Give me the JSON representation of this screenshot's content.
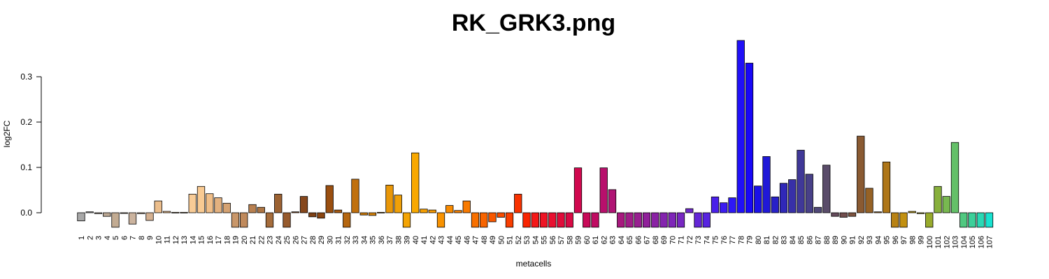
{
  "chart_data": {
    "type": "bar",
    "title": "RK_GRK3.png",
    "xlabel": "metacells",
    "ylabel": "log2FC",
    "ylim": [
      -0.035,
      0.38
    ],
    "yticks": [
      0.0,
      0.1,
      0.2,
      0.3
    ],
    "ytick_labels": [
      "0.0",
      "0.1",
      "0.2",
      "0.3"
    ],
    "grid": false,
    "categories": [
      "1",
      "2",
      "3",
      "4",
      "5",
      "6",
      "7",
      "8",
      "9",
      "10",
      "11",
      "12",
      "13",
      "14",
      "15",
      "16",
      "17",
      "18",
      "19",
      "20",
      "21",
      "22",
      "23",
      "24",
      "25",
      "26",
      "27",
      "28",
      "29",
      "30",
      "31",
      "32",
      "33",
      "34",
      "35",
      "36",
      "37",
      "38",
      "39",
      "40",
      "41",
      "42",
      "43",
      "44",
      "45",
      "46",
      "47",
      "48",
      "49",
      "50",
      "51",
      "52",
      "53",
      "54",
      "55",
      "56",
      "57",
      "58",
      "59",
      "60",
      "61",
      "62",
      "63",
      "64",
      "65",
      "66",
      "67",
      "68",
      "69",
      "70",
      "71",
      "72",
      "73",
      "74",
      "75",
      "76",
      "77",
      "78",
      "79",
      "80",
      "81",
      "82",
      "83",
      "84",
      "85",
      "86",
      "87",
      "88",
      "89",
      "90",
      "91",
      "92",
      "93",
      "94",
      "95",
      "96",
      "97",
      "98",
      "99",
      "100",
      "101",
      "102",
      "103",
      "104",
      "105",
      "106",
      "107"
    ],
    "values": [
      -0.018,
      0.002,
      -0.002,
      -0.008,
      -0.032,
      -0.001,
      -0.025,
      -0.002,
      -0.017,
      0.026,
      0.003,
      0.001,
      0.001,
      0.041,
      0.058,
      0.042,
      0.033,
      0.021,
      -0.032,
      -0.032,
      0.018,
      0.012,
      -0.032,
      0.041,
      -0.032,
      0.002,
      0.036,
      -0.009,
      -0.012,
      0.06,
      0.006,
      -0.032,
      0.074,
      -0.005,
      -0.006,
      0.001,
      0.061,
      0.039,
      -0.032,
      0.132,
      0.008,
      0.006,
      -0.032,
      0.016,
      0.005,
      0.026,
      -0.032,
      -0.032,
      -0.02,
      -0.01,
      -0.032,
      0.041,
      -0.032,
      -0.032,
      -0.032,
      -0.032,
      -0.032,
      -0.032,
      0.099,
      -0.032,
      -0.032,
      0.099,
      0.051,
      -0.032,
      -0.032,
      -0.032,
      -0.032,
      -0.032,
      -0.032,
      -0.032,
      -0.032,
      0.009,
      -0.032,
      -0.032,
      0.035,
      0.022,
      0.033,
      0.38,
      0.33,
      0.059,
      0.124,
      0.035,
      0.065,
      0.073,
      0.138,
      0.085,
      0.012,
      0.105,
      -0.008,
      -0.01,
      -0.008,
      0.169,
      0.054,
      0.002,
      0.112,
      -0.032,
      -0.032,
      0.003,
      -0.002,
      -0.032,
      0.058,
      0.036,
      0.155,
      -0.032,
      -0.032,
      -0.032,
      -0.032
    ],
    "colors": [
      "#a8a8a8",
      "#a8a8a8",
      "#b5a999",
      "#bba894",
      "#c2ab92",
      "#c6ac93",
      "#cbb39e",
      "#cfb399",
      "#d4b090",
      "#ecbe8c",
      "#f0c08d",
      "#f2c592",
      "#f5c795",
      "#f8cb96",
      "#f9ca92",
      "#f0be88",
      "#e3b17f",
      "#d5a272",
      "#c9976a",
      "#c08a5c",
      "#b88050",
      "#ad7543",
      "#a56c3b",
      "#9c6232",
      "#965a2c",
      "#8f5224",
      "#86471c",
      "#7e4014",
      "#8a4510",
      "#9a4f10",
      "#a85a12",
      "#b5660f",
      "#c0700d",
      "#cb7a0a",
      "#d6830a",
      "#e08e0a",
      "#e99708",
      "#f0a008",
      "#f4a404",
      "#f8a800",
      "#f8a000",
      "#f89a00",
      "#f89200",
      "#f88a00",
      "#f88200",
      "#f87a00",
      "#f87000",
      "#f86400",
      "#f85800",
      "#f84c00",
      "#f83e00",
      "#f83200",
      "#f82400",
      "#f41818",
      "#ee1424",
      "#e81030",
      "#e00c3a",
      "#d80a44",
      "#d0084e",
      "#c80a58",
      "#c00c62",
      "#b8106c",
      "#b01474",
      "#a8187e",
      "#a01c88",
      "#981f90",
      "#90209a",
      "#8a22a4",
      "#8424ae",
      "#7e26b8",
      "#7828c2",
      "#7028cc",
      "#6426d6",
      "#5824e0",
      "#4a20ea",
      "#3c1cf2",
      "#2e18f6",
      "#2010f8",
      "#1808f8",
      "#1a10e8",
      "#2018d8",
      "#2820c8",
      "#3028b8",
      "#3830a8",
      "#403898",
      "#484088",
      "#504878",
      "#5a4c6a",
      "#664c5c",
      "#724e4e",
      "#7e5440",
      "#8a5a32",
      "#966226",
      "#a26c1e",
      "#ae7618",
      "#b88214",
      "#c29010",
      "#b89c18",
      "#a8a420",
      "#98aa2c",
      "#88b03c",
      "#78b850",
      "#64c068",
      "#50c880",
      "#3cd09a",
      "#2ad8b4",
      "#18e2d0"
    ]
  }
}
